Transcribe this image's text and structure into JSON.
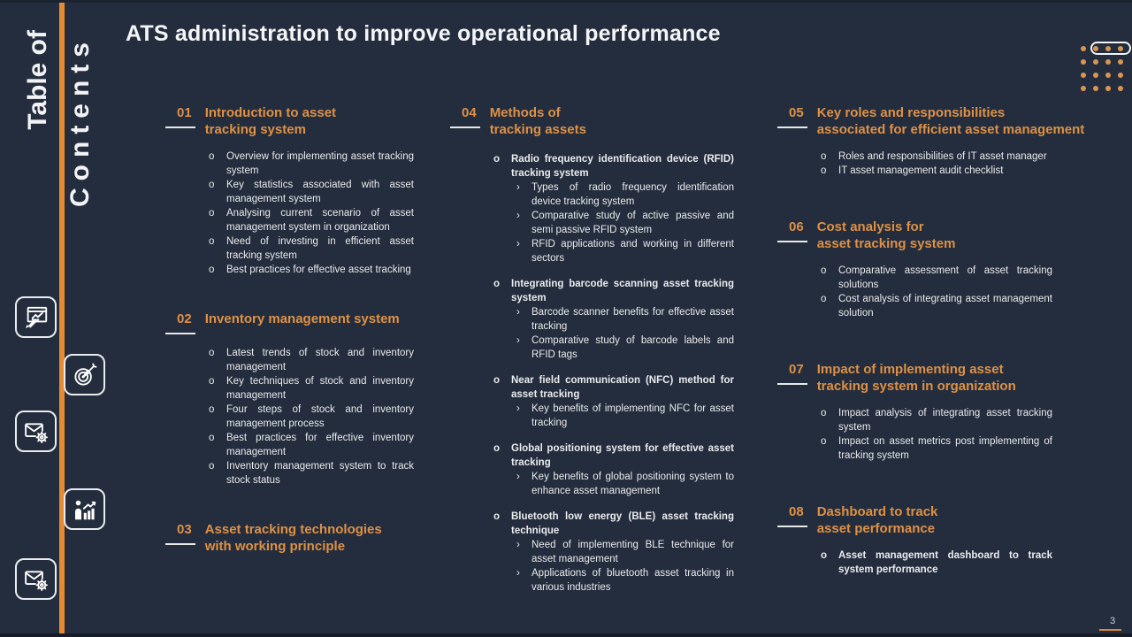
{
  "slide": {
    "title": "ATS administration to improve operational performance",
    "page_number": "3"
  },
  "sidebar": {
    "vertical_title_line1": "Table of",
    "vertical_title_line2": "Contents",
    "icons": [
      "presentation-edit-icon",
      "target-arrow-icon",
      "email-settings-icon",
      "person-growth-chart-icon",
      "email-settings-icon"
    ]
  },
  "markers": {
    "bullet": "o",
    "sub_bullet": "›"
  },
  "colors": {
    "background": "#242D3D",
    "accent_orange_text": "#DE9145",
    "accent_orange_line": "#E58B33",
    "dot_orange": "#D99552",
    "text_white": "#F1F3F5"
  },
  "decoration": {
    "dot_grid_rows": 4,
    "dot_grid_cols": 4
  },
  "sections": [
    {
      "column": 1,
      "num": "01",
      "title_lines": [
        "Introduction to asset",
        "tracking system"
      ],
      "items": [
        {
          "text": "Overview for implementing asset tracking system"
        },
        {
          "text": "Key statistics associated with asset management system"
        },
        {
          "text": "Analysing current scenario of asset management system in organization"
        },
        {
          "text": "Need of investing in efficient asset tracking system"
        },
        {
          "text": "Best practices for effective asset tracking"
        }
      ]
    },
    {
      "column": 1,
      "num": "02",
      "title_lines": [
        "Inventory management system"
      ],
      "items": [
        {
          "text": "Latest trends of stock and inventory management"
        },
        {
          "text": "Key techniques of stock and inventory management"
        },
        {
          "text": "Four steps of stock and inventory management process"
        },
        {
          "text": "Best practices for effective inventory management"
        },
        {
          "text": "Inventory management system to track stock status"
        }
      ]
    },
    {
      "column": 1,
      "num": "03",
      "title_lines": [
        "Asset tracking technologies",
        "with working principle"
      ],
      "items": []
    },
    {
      "column": 2,
      "num": "04",
      "title_lines": [
        "Methods of",
        "tracking assets"
      ],
      "items": [
        {
          "text": "Radio frequency identification device (RFID) tracking system",
          "bold": true,
          "subs": [
            "Types of radio frequency identification device tracking system",
            "Comparative study of active passive and semi passive RFID system",
            "RFID applications and working in different sectors"
          ]
        },
        {
          "text": "Integrating barcode scanning asset tracking system",
          "bold": true,
          "subs": [
            "Barcode scanner benefits for effective asset tracking",
            "Comparative study of barcode labels and RFID tags"
          ]
        },
        {
          "text": "Near field communication (NFC) method for asset tracking",
          "bold": true,
          "subs": [
            "Key benefits of implementing NFC for asset tracking"
          ]
        },
        {
          "text": "Global positioning system for effective asset tracking",
          "bold": true,
          "subs": [
            "Key benefits of global positioning system to enhance asset management"
          ]
        },
        {
          "text": "Bluetooth low energy (BLE) asset tracking technique",
          "bold": true,
          "subs": [
            "Need of implementing BLE technique for asset management",
            "Applications of bluetooth asset tracking in various industries"
          ]
        }
      ]
    },
    {
      "column": 3,
      "num": "05",
      "title_lines": [
        "Key roles and responsibilities",
        "associated for efficient asset management"
      ],
      "items": [
        {
          "text": "Roles and responsibilities of IT asset manager"
        },
        {
          "text": "IT asset management audit checklist"
        }
      ]
    },
    {
      "column": 3,
      "num": "06",
      "title_lines": [
        "Cost analysis for",
        "asset tracking system"
      ],
      "items": [
        {
          "text": "Comparative assessment of asset tracking solutions"
        },
        {
          "text": "Cost analysis of integrating asset management solution"
        }
      ]
    },
    {
      "column": 3,
      "num": "07",
      "title_lines": [
        "Impact of implementing asset",
        "tracking system in organization"
      ],
      "items": [
        {
          "text": "Impact analysis of integrating asset tracking system"
        },
        {
          "text": "Impact on asset metrics post implementing of tracking system"
        }
      ]
    },
    {
      "column": 3,
      "num": "08",
      "title_lines": [
        "Dashboard to track",
        "asset performance"
      ],
      "items": [
        {
          "text": "Asset management dashboard to track system performance",
          "bold": true
        }
      ]
    }
  ]
}
